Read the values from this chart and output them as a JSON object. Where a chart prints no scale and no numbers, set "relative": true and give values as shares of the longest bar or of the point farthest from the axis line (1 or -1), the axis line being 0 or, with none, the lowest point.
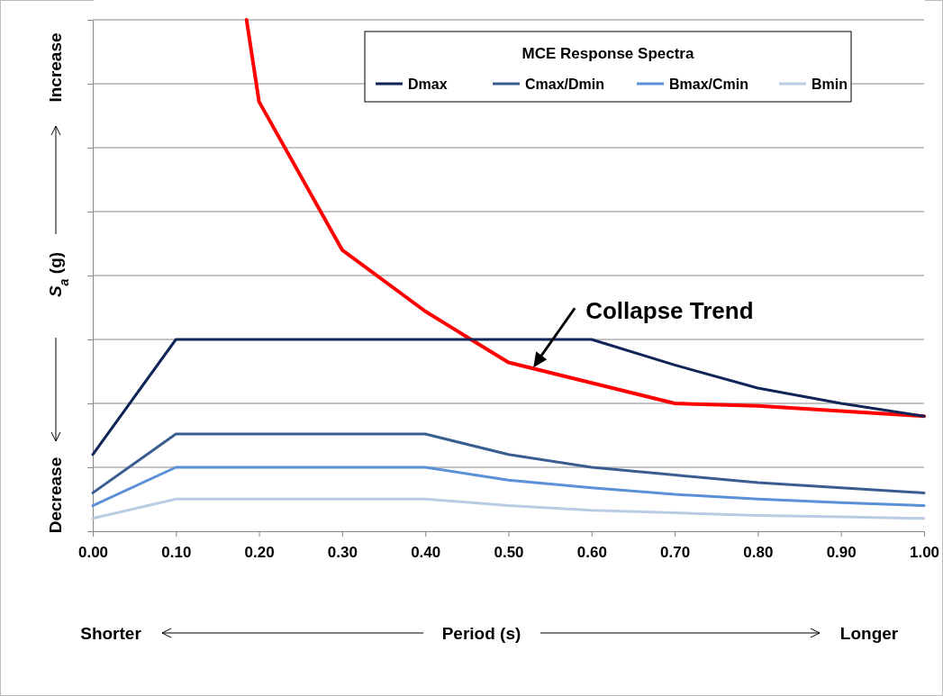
{
  "chart_data": {
    "type": "line",
    "relative": true,
    "xlabel": "Period (s)",
    "ylabel": "S$_{a}$ (g)",
    "legend_title": "MCE Response  Spectra",
    "legend": "top right",
    "grid": "y",
    "xlim": [
      0,
      1
    ],
    "xticks": [
      {
        "value": 0,
        "label": "0.00"
      },
      {
        "value": 0.1,
        "label": "0.10"
      },
      {
        "value": 0.2,
        "label": "0.20"
      },
      {
        "value": 0.3,
        "label": "0.30"
      },
      {
        "value": 0.4,
        "label": "0.40"
      },
      {
        "value": 0.5,
        "label": "0.50"
      },
      {
        "value": 0.6,
        "label": "0.60"
      },
      {
        "value": 0.7,
        "label": "0.70"
      },
      {
        "value": 0.8,
        "label": "0.80"
      },
      {
        "value": 0.9,
        "label": "0.90"
      },
      {
        "value": 1,
        "label": "1.00"
      }
    ],
    "x": [
      0,
      0.1,
      0.2,
      0.3,
      0.4,
      0.5,
      0.6,
      0.7,
      0.8,
      0.9,
      1.0
    ],
    "series": [
      {
        "name": "Dmax",
        "color": "#0f2557",
        "values": [
          0.15,
          0.375,
          0.375,
          0.375,
          0.375,
          0.375,
          0.375,
          0.325,
          0.28,
          0.25,
          0.225
        ]
      },
      {
        "name": "Cmax/Dmin",
        "color": "#3a5d8f",
        "values": [
          0.075,
          0.19,
          0.19,
          0.19,
          0.19,
          0.15,
          0.125,
          0.11,
          0.095,
          0.085,
          0.075
        ]
      },
      {
        "name": "Bmax/Cmin",
        "color": "#5b8fd6",
        "values": [
          0.05,
          0.125,
          0.125,
          0.125,
          0.125,
          0.1,
          0.085,
          0.072,
          0.063,
          0.056,
          0.05
        ]
      },
      {
        "name": "Bmin",
        "color": "#b9cce4",
        "values": [
          0.025,
          0.063,
          0.063,
          0.063,
          0.063,
          0.05,
          0.041,
          0.036,
          0.031,
          0.028,
          0.025
        ]
      },
      {
        "color": "#ff0000",
        "x": [
          0.185,
          0.2,
          0.3,
          0.4,
          0.5,
          0.6,
          0.7,
          0.8,
          0.9,
          1.0
        ],
        "values": [
          1,
          0.84,
          0.55,
          0.43,
          0.33,
          0.29,
          0.25,
          0.245,
          0.235,
          0.225
        ]
      }
    ],
    "annotations": [
      "Shorter",
      "Longer",
      "Decrease",
      "Increase",
      {
        "text": "Collapse Trend",
        "x": 0.53,
        "y": 0.32
      }
    ]
  }
}
